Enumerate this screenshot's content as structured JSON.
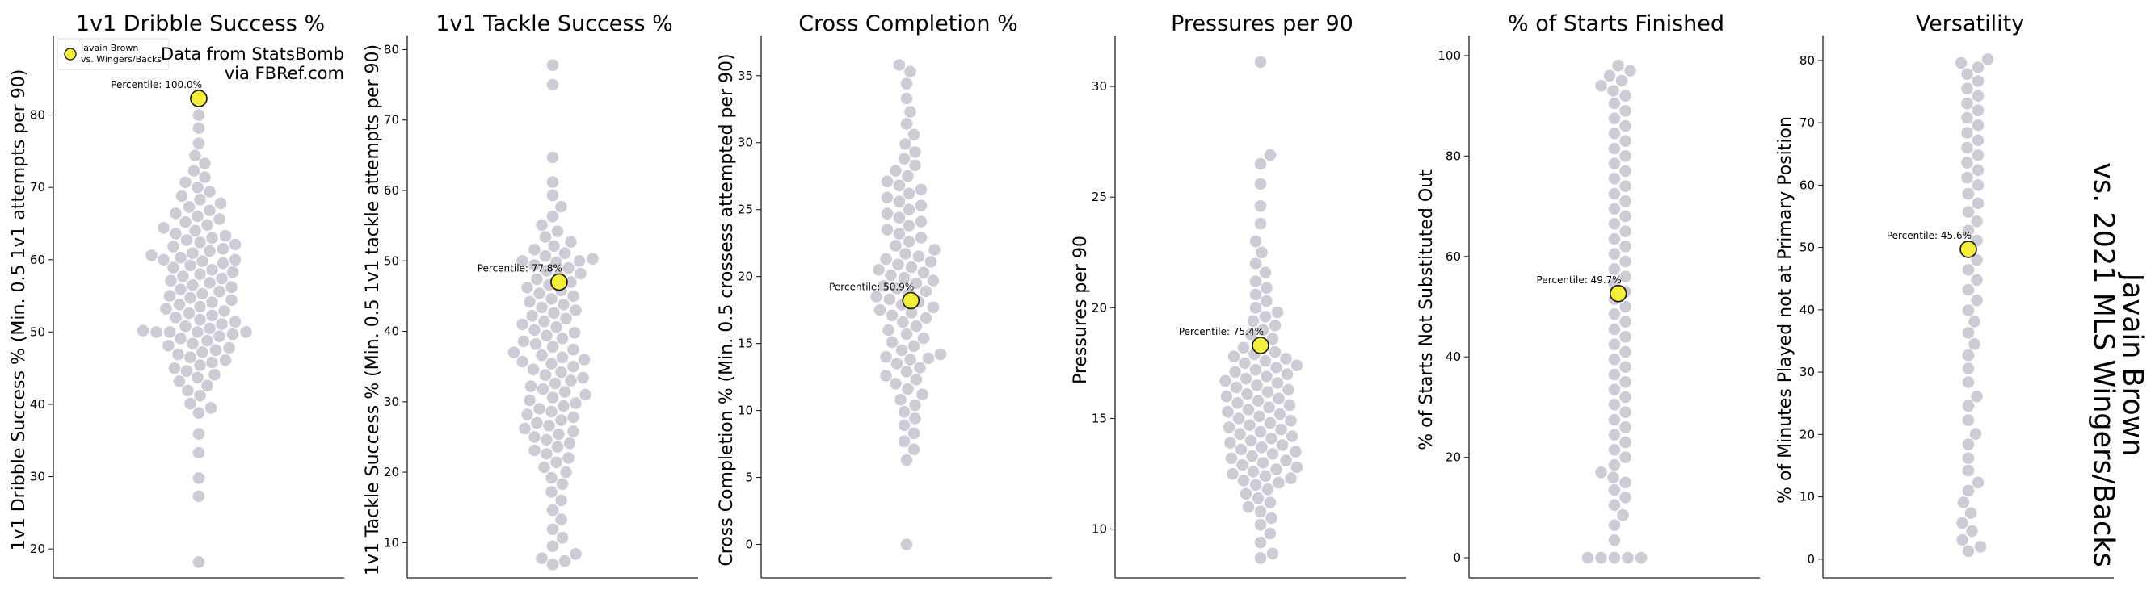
{
  "figure": {
    "side_title_line1": "Javain Brown",
    "side_title_line2": "vs. 2021 MLS Wingers/Backs",
    "source_line1": "Data from StatsBomb",
    "source_line2": "via FBRef.com",
    "legend_line1": "Javain Brown",
    "legend_line2": "vs. Wingers/Backs",
    "background_dot_color": "#cfcbd6",
    "highlight_color": "#f2ee3a"
  },
  "chart_data": [
    {
      "type": "scatter",
      "title": "1v1 Dribble Success %",
      "ylabel": "1v1 Dribble Success % (Min. 0.5 1v1 attempts per 90)",
      "ylim": [
        16,
        91
      ],
      "yticks": [
        20,
        30,
        40,
        50,
        60,
        70,
        80
      ],
      "values": [
        18.2,
        27.3,
        29.8,
        33.3,
        35.9,
        38.8,
        39.5,
        40.1,
        41.2,
        41.9,
        42.6,
        43.2,
        43.7,
        44.1,
        44.6,
        45.0,
        45.4,
        45.8,
        46.1,
        46.5,
        46.9,
        47.2,
        47.5,
        47.8,
        48.1,
        48.4,
        48.8,
        49.1,
        49.4,
        49.7,
        50.0,
        50.0,
        50.0,
        50.0,
        50.2,
        50.5,
        50.8,
        51.1,
        51.4,
        51.7,
        52.0,
        52.3,
        52.6,
        52.9,
        53.2,
        53.5,
        53.8,
        54.1,
        54.4,
        54.7,
        55.0,
        55.3,
        55.6,
        55.9,
        56.2,
        56.5,
        56.8,
        57.1,
        57.4,
        57.7,
        58.0,
        58.3,
        58.6,
        58.9,
        59.2,
        59.5,
        59.8,
        60.0,
        60.0,
        60.3,
        60.6,
        60.9,
        61.2,
        61.5,
        61.8,
        62.1,
        62.4,
        62.7,
        63.0,
        63.3,
        63.6,
        64.0,
        64.4,
        64.8,
        65.2,
        65.6,
        66.0,
        66.4,
        66.8,
        67.3,
        67.8,
        68.3,
        68.8,
        69.4,
        70.0,
        70.7,
        71.4,
        72.3,
        73.3,
        74.4,
        76.1,
        78.2,
        80.0
      ],
      "highlight": {
        "value": 82.3,
        "label": "Percentile: 100.0%"
      }
    },
    {
      "type": "scatter",
      "title": "1v1 Tackle Success %",
      "ylabel": "1v1 Tackle Success % (Min. 0.5 1v1 tackle attempts per 90)",
      "ylim": [
        5,
        82
      ],
      "yticks": [
        10,
        20,
        30,
        40,
        50,
        60,
        70,
        80
      ],
      "values": [
        6.9,
        7.4,
        7.8,
        8.4,
        9.5,
        10.7,
        11.9,
        13.3,
        14.6,
        16.0,
        17.2,
        18.3,
        19.2,
        20.0,
        20.7,
        21.4,
        22.0,
        22.6,
        23.1,
        23.6,
        24.1,
        24.6,
        25.0,
        25.4,
        25.8,
        26.2,
        26.6,
        27.0,
        27.4,
        27.8,
        28.2,
        28.6,
        29.0,
        29.4,
        29.8,
        30.2,
        30.6,
        31.0,
        31.4,
        31.8,
        32.2,
        32.6,
        33.0,
        33.4,
        33.8,
        34.2,
        34.6,
        35.0,
        35.4,
        35.7,
        36.0,
        36.3,
        36.6,
        37.0,
        37.4,
        37.8,
        38.2,
        38.6,
        39.0,
        39.4,
        39.8,
        40.2,
        40.6,
        41.0,
        41.4,
        41.8,
        42.2,
        42.6,
        43.0,
        43.4,
        43.8,
        44.2,
        44.6,
        45.0,
        45.4,
        45.8,
        46.2,
        46.6,
        47.0,
        47.4,
        47.8,
        48.2,
        48.6,
        49.0,
        49.4,
        49.8,
        50.0,
        50.0,
        50.3,
        50.7,
        51.1,
        51.6,
        52.1,
        52.7,
        53.4,
        54.2,
        55.1,
        56.3,
        57.7,
        59.3,
        61.2,
        64.7,
        75.0,
        77.8
      ],
      "highlight": {
        "value": 47.0,
        "label": "Percentile: 77.8%"
      }
    },
    {
      "type": "scatter",
      "title": "Cross Completion %",
      "ylabel": "Cross Completion % (Min. 0.5 crossess attempted per 90)",
      "ylim": [
        -2.5,
        38
      ],
      "yticks": [
        0,
        5,
        10,
        15,
        20,
        25,
        30,
        35
      ],
      "values": [
        0.0,
        6.3,
        7.1,
        7.7,
        8.3,
        8.9,
        9.4,
        9.9,
        10.4,
        10.8,
        11.2,
        11.6,
        12.0,
        12.3,
        12.6,
        12.9,
        13.2,
        13.5,
        13.8,
        13.9,
        14.0,
        14.2,
        14.5,
        14.8,
        15.1,
        15.4,
        15.7,
        16.0,
        16.3,
        16.6,
        16.9,
        17.1,
        17.3,
        17.5,
        17.7,
        17.9,
        18.1,
        18.3,
        18.5,
        18.7,
        18.9,
        19.1,
        19.3,
        19.5,
        19.7,
        19.9,
        20.1,
        20.3,
        20.5,
        20.7,
        20.9,
        21.1,
        21.3,
        21.5,
        21.7,
        22.0,
        22.3,
        22.6,
        22.9,
        23.2,
        23.5,
        23.8,
        24.1,
        24.4,
        24.7,
        25.0,
        25.3,
        25.6,
        25.9,
        26.2,
        26.5,
        26.8,
        27.1,
        27.5,
        27.9,
        28.3,
        28.8,
        29.3,
        29.9,
        30.6,
        31.4,
        32.3,
        33.3,
        34.4,
        35.3,
        35.8
      ],
      "highlight": {
        "value": 18.2,
        "label": "Percentile: 50.9%"
      }
    },
    {
      "type": "scatter",
      "title": "Pressures per 90",
      "ylabel": "Pressures per 90",
      "ylim": [
        7.8,
        32.3
      ],
      "yticks": [
        10,
        15,
        20,
        25,
        30
      ],
      "values": [
        8.7,
        8.9,
        9.4,
        9.8,
        10.2,
        10.5,
        10.8,
        11.0,
        11.2,
        11.4,
        11.6,
        11.8,
        12.0,
        12.1,
        12.2,
        12.3,
        12.4,
        12.5,
        12.6,
        12.7,
        12.8,
        12.9,
        13.0,
        13.1,
        13.2,
        13.3,
        13.4,
        13.5,
        13.6,
        13.7,
        13.8,
        13.9,
        14.0,
        14.1,
        14.2,
        14.3,
        14.4,
        14.5,
        14.6,
        14.7,
        14.8,
        14.9,
        15.0,
        15.1,
        15.2,
        15.3,
        15.4,
        15.5,
        15.6,
        15.7,
        15.8,
        15.9,
        16.0,
        16.1,
        16.2,
        16.3,
        16.4,
        16.5,
        16.6,
        16.7,
        16.8,
        16.9,
        17.0,
        17.1,
        17.2,
        17.3,
        17.4,
        17.5,
        17.6,
        17.7,
        17.8,
        17.9,
        18.0,
        18.2,
        18.4,
        18.6,
        18.8,
        19.0,
        19.2,
        19.4,
        19.6,
        19.8,
        20.0,
        20.3,
        20.6,
        20.9,
        21.2,
        21.6,
        22.0,
        22.5,
        23.0,
        23.8,
        24.6,
        25.6,
        26.5,
        26.9,
        31.1
      ],
      "highlight": {
        "value": 18.3,
        "label": "Percentile: 75.4%"
      }
    },
    {
      "type": "scatter",
      "title": "% of Starts Finished",
      "ylabel": "% of Starts Not Substituted Out",
      "ylim": [
        -4,
        104
      ],
      "yticks": [
        0,
        20,
        40,
        60,
        80,
        100
      ],
      "values": [
        0.0,
        0.0,
        0.0,
        0.0,
        0.0,
        3.5,
        6.5,
        8.5,
        10.5,
        12.0,
        13.5,
        15.0,
        16.0,
        17.0,
        18.5,
        20.0,
        21.5,
        23.0,
        24.5,
        26.0,
        27.5,
        29.0,
        30.5,
        32.0,
        33.5,
        35.0,
        36.5,
        38.0,
        39.5,
        41.0,
        42.5,
        44.0,
        45.5,
        47.0,
        48.5,
        50.0,
        51.5,
        53.0,
        54.5,
        56.0,
        57.5,
        59.0,
        60.5,
        62.0,
        63.5,
        65.0,
        66.5,
        68.0,
        69.5,
        71.0,
        72.5,
        74.0,
        75.5,
        77.0,
        78.5,
        80.0,
        81.5,
        83.0,
        84.5,
        86.0,
        87.5,
        89.0,
        90.5,
        92.0,
        93.0,
        94.0,
        95.0,
        96.0,
        97.0,
        98.0
      ],
      "highlight": {
        "value": 52.6,
        "label": "Percentile: 49.7%"
      }
    },
    {
      "type": "scatter",
      "title": "Versatility",
      "ylabel": "% of Minutes Played not at Primary Position",
      "ylim": [
        -3,
        84
      ],
      "yticks": [
        0,
        10,
        20,
        30,
        40,
        50,
        60,
        70,
        80
      ],
      "values": [
        1.3,
        2.0,
        3.1,
        4.5,
        5.8,
        7.4,
        9.1,
        11.0,
        12.3,
        14.2,
        16.2,
        18.4,
        20.1,
        22.3,
        24.6,
        26.1,
        28.4,
        30.6,
        32.7,
        34.5,
        36.3,
        38.1,
        39.9,
        41.5,
        43.2,
        44.8,
        46.4,
        48.0,
        49.6,
        51.1,
        52.7,
        54.2,
        55.7,
        57.1,
        58.6,
        60.0,
        61.2,
        62.4,
        63.6,
        64.8,
        66.0,
        67.2,
        68.4,
        69.6,
        70.8,
        72.0,
        73.1,
        74.3,
        75.5,
        76.7,
        77.8,
        78.9,
        79.6,
        80.2
      ],
      "highlight": {
        "value": 49.7,
        "label": "Percentile: 45.6%"
      }
    }
  ]
}
